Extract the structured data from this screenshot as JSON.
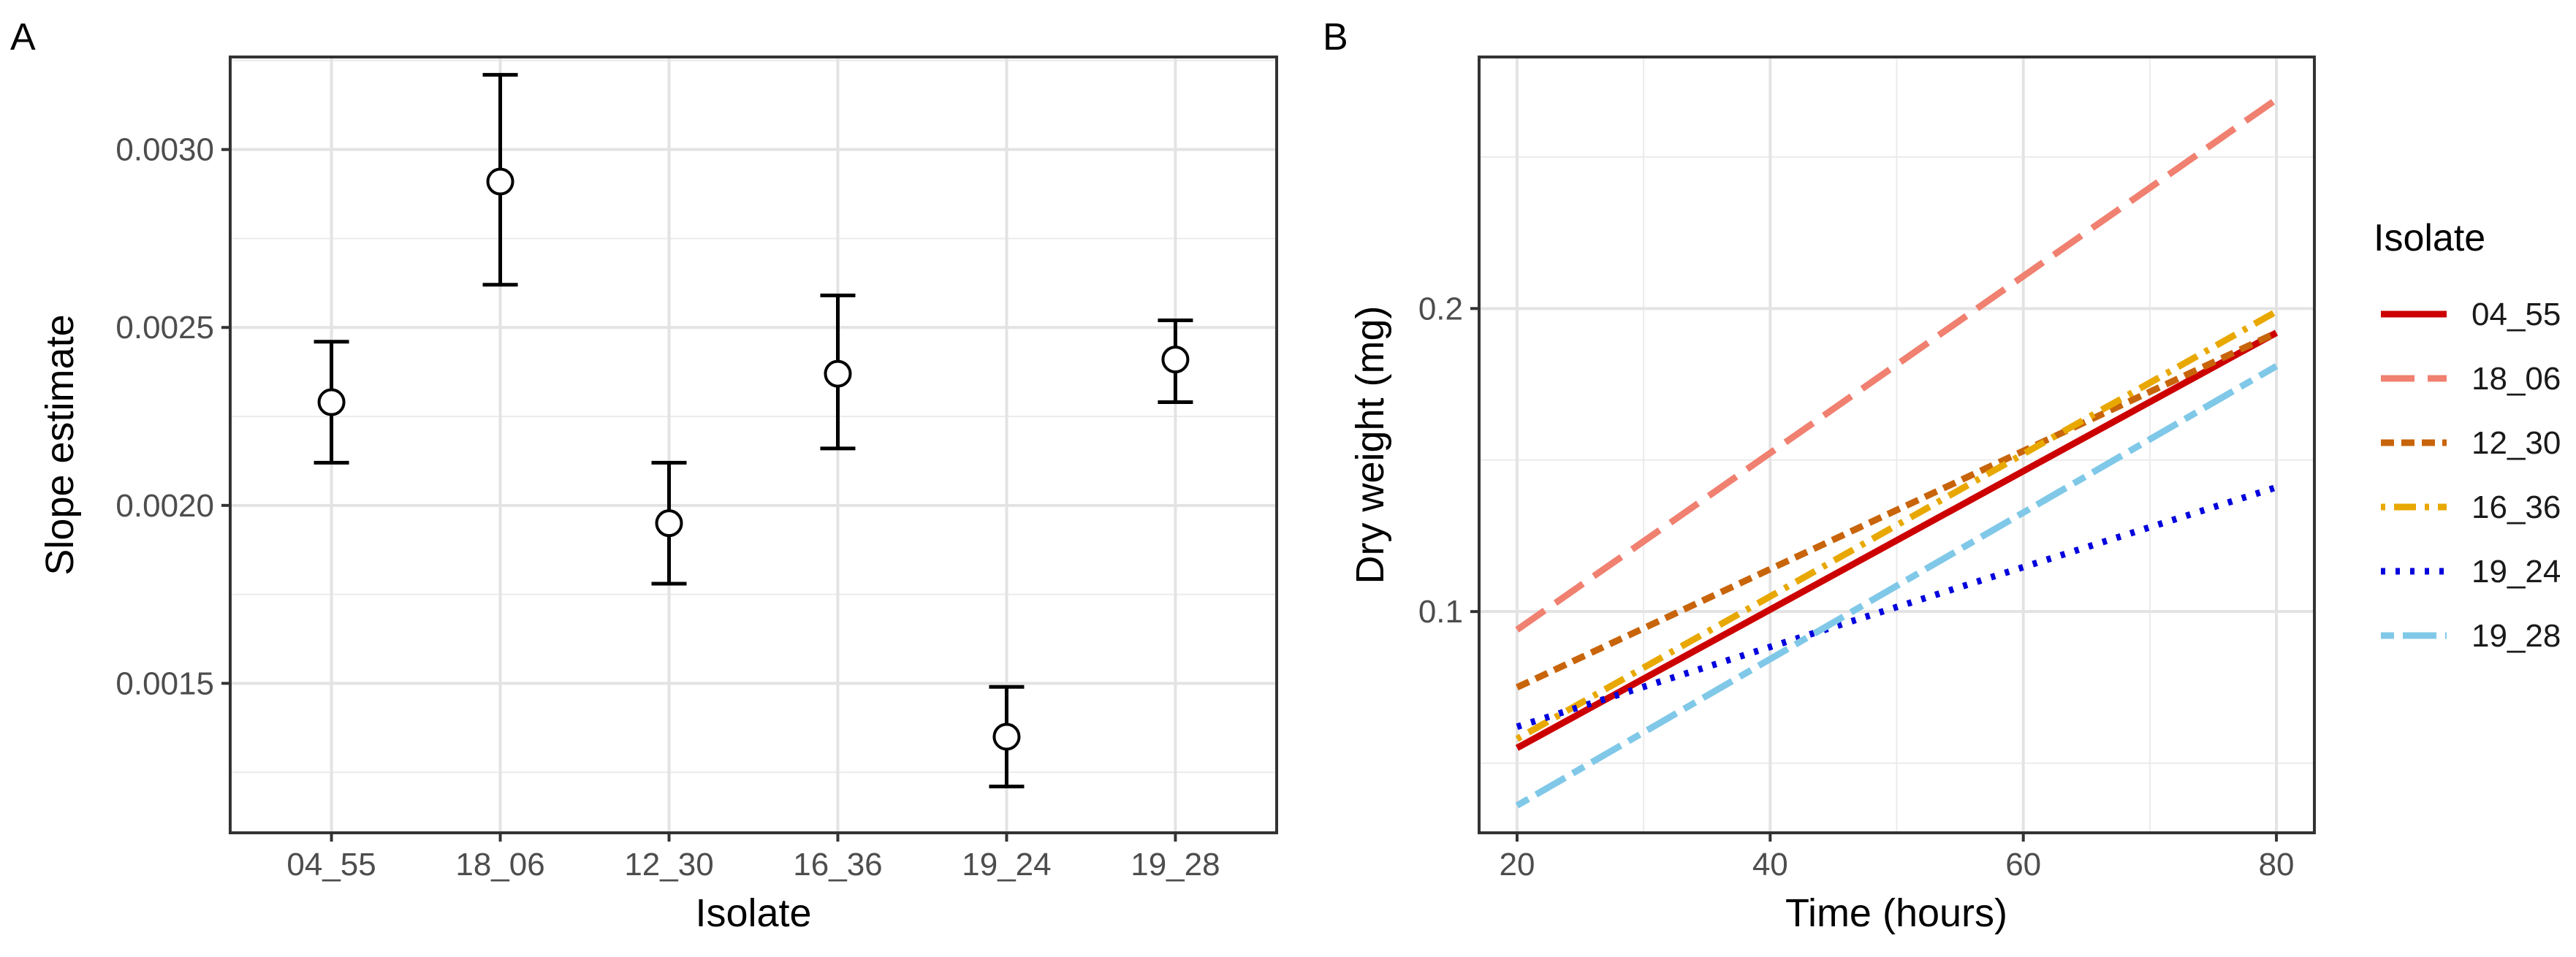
{
  "panels": [
    {
      "label": "A",
      "chart_data": {
        "type": "scatter",
        "subtype": "point-with-error-bars",
        "xlabel": "Isolate",
        "ylabel": "Slope estimate",
        "categories": [
          "04_55",
          "18_06",
          "12_30",
          "16_36",
          "19_24",
          "19_28"
        ],
        "values": [
          0.00229,
          0.00291,
          0.00195,
          0.00237,
          0.00135,
          0.00241
        ],
        "lower": [
          0.00212,
          0.00262,
          0.00178,
          0.00216,
          0.00121,
          0.00229
        ],
        "upper": [
          0.00246,
          0.00321,
          0.00212,
          0.00259,
          0.00149,
          0.00252
        ],
        "yticks": [
          0.0015,
          0.002,
          0.0025,
          0.003
        ],
        "ytick_labels": [
          "0.0015",
          "0.0020",
          "0.0025",
          "0.0030"
        ],
        "ylim": [
          0.00108,
          0.00326
        ],
        "grid": true,
        "legend": "none"
      }
    },
    {
      "label": "B",
      "chart_data": {
        "type": "line",
        "xlabel": "Time (hours)",
        "ylabel": "Dry weight (mg)",
        "xticks": [
          20,
          40,
          60,
          80
        ],
        "xtick_labels": [
          "20",
          "40",
          "60",
          "80"
        ],
        "yticks": [
          0.1,
          0.2
        ],
        "ytick_labels": [
          "0.1",
          "0.2"
        ],
        "xlim": [
          17,
          83
        ],
        "ylim": [
          0.027,
          0.283
        ],
        "grid": true,
        "legend_title": "Isolate",
        "legend_position": "right",
        "series": [
          {
            "name": "04_55",
            "x": [
              20,
              80
            ],
            "y": [
              0.055,
              0.192
            ],
            "color": "#cc0000",
            "dash": "solid"
          },
          {
            "name": "18_06",
            "x": [
              20,
              80
            ],
            "y": [
              0.094,
              0.269
            ],
            "color": "#f08070",
            "dash": "longdash"
          },
          {
            "name": "12_30",
            "x": [
              20,
              80
            ],
            "y": [
              0.075,
              0.192
            ],
            "color": "#c8640a",
            "dash": "dashed"
          },
          {
            "name": "16_36",
            "x": [
              20,
              80
            ],
            "y": [
              0.058,
              0.199
            ],
            "color": "#e8a800",
            "dash": "dotdash"
          },
          {
            "name": "19_24",
            "x": [
              20,
              80
            ],
            "y": [
              0.062,
              0.141
            ],
            "color": "#0000dd",
            "dash": "dotted"
          },
          {
            "name": "19_28",
            "x": [
              20,
              80
            ],
            "y": [
              0.036,
              0.181
            ],
            "color": "#80c8e8",
            "dash": "twodash"
          }
        ]
      }
    }
  ]
}
